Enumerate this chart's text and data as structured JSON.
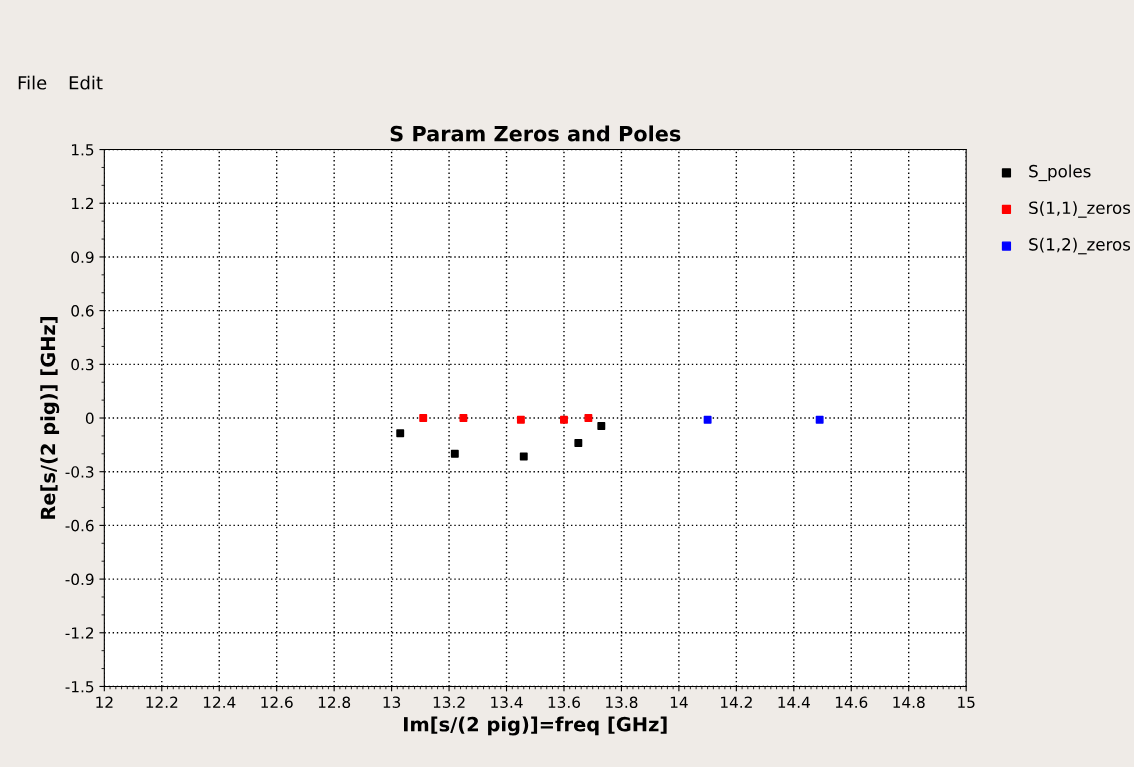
{
  "chart_data": {
    "type": "scatter",
    "title": "S Param Zeros and Poles",
    "xlabel": "Im[s/(2 pig)]=freq [GHz]",
    "ylabel": "Re[s/(2 pig)] [GHz]",
    "annotations": [
      "File",
      "Edit"
    ],
    "series": [
      {
        "name": "S_poles",
        "color": "#000000",
        "x": [
          13.03,
          13.22,
          13.46,
          13.65,
          13.73
        ],
        "values": [
          -0.085,
          -0.2,
          -0.215,
          -0.14,
          -0.045
        ]
      },
      {
        "name": "S(1,1)_zeros",
        "color": "#ff0000",
        "x": [
          13.11,
          13.25,
          13.45,
          13.6,
          13.685
        ],
        "values": [
          0,
          0,
          -0.01,
          -0.01,
          0
        ]
      },
      {
        "name": "S(1,2)_zeros",
        "color": "#0000ff",
        "x": [
          14.1,
          14.49
        ],
        "values": [
          -0.01,
          -0.01
        ]
      }
    ],
    "xlim": [
      12,
      15
    ],
    "xticks": [
      12,
      12.2,
      12.4,
      12.6,
      12.8,
      13,
      13.2,
      13.4,
      13.6,
      13.8,
      14,
      14.2,
      14.4,
      14.6,
      14.8,
      15
    ],
    "ylim": [
      -1.5,
      1.5
    ],
    "yticks": [
      -1.5,
      -1.2,
      -0.9,
      -0.6,
      -0.3,
      0,
      0.3,
      0.6,
      0.9,
      1.2,
      1.5
    ],
    "grid": true,
    "legend": "top right",
    "marker": "square"
  }
}
